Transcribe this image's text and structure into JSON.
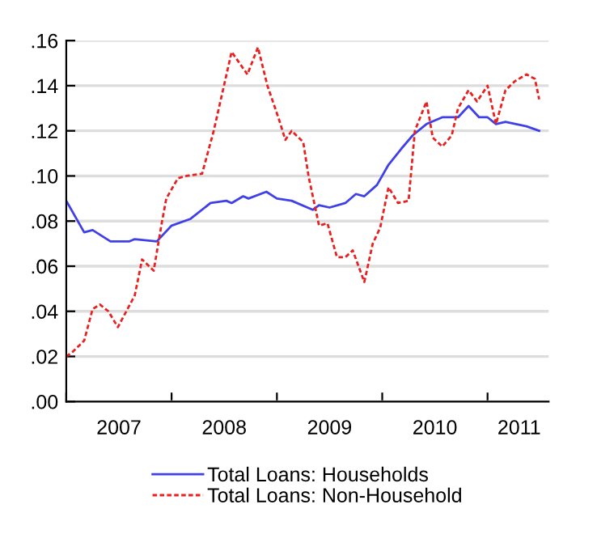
{
  "chart_data": {
    "type": "line",
    "xlim": [
      2007,
      2011.58
    ],
    "xticks": [
      {
        "value": 2007,
        "label": null
      },
      {
        "value": 2008,
        "label": null
      },
      {
        "value": 2009,
        "label": null
      },
      {
        "value": 2010,
        "label": null
      },
      {
        "value": 2011,
        "label": null
      },
      {
        "value": 2007.5,
        "label": "2007"
      },
      {
        "value": 2008.5,
        "label": "2008"
      },
      {
        "value": 2009.5,
        "label": "2009"
      },
      {
        "value": 2010.5,
        "label": "2010"
      },
      {
        "value": 2011.3,
        "label": "2011"
      }
    ],
    "ylim": [
      0,
      0.16
    ],
    "yticks": [
      {
        "value": 0,
        "label": ".00"
      },
      {
        "value": 0.02,
        "label": ".02"
      },
      {
        "value": 0.04,
        "label": ".04"
      },
      {
        "value": 0.06,
        "label": ".06"
      },
      {
        "value": 0.08,
        "label": ".08"
      },
      {
        "value": 0.1,
        "label": ".10"
      },
      {
        "value": 0.12,
        "label": ".12"
      },
      {
        "value": 0.14,
        "label": ".14"
      },
      {
        "value": 0.16,
        "label": ".16"
      }
    ],
    "grid": "y",
    "legend": "bottom",
    "series": [
      {
        "name": "Total Loans: Households",
        "color": "#4040e8",
        "line_style": "solid",
        "x": [
          2007.0,
          2007.17,
          2007.25,
          2007.42,
          2007.6,
          2007.65,
          2007.86,
          2008.0,
          2008.18,
          2008.37,
          2008.52,
          2008.57,
          2008.68,
          2008.73,
          2008.9,
          2009.0,
          2009.14,
          2009.34,
          2009.4,
          2009.5,
          2009.65,
          2009.75,
          2009.83,
          2009.95,
          2010.06,
          2010.18,
          2010.29,
          2010.42,
          2010.57,
          2010.72,
          2010.82,
          2010.92,
          2011.0,
          2011.08,
          2011.17,
          2011.37,
          2011.49
        ],
        "values": [
          0.089,
          0.075,
          0.076,
          0.071,
          0.071,
          0.072,
          0.071,
          0.078,
          0.081,
          0.088,
          0.089,
          0.088,
          0.091,
          0.09,
          0.093,
          0.09,
          0.089,
          0.085,
          0.087,
          0.086,
          0.088,
          0.092,
          0.091,
          0.096,
          0.105,
          0.112,
          0.118,
          0.123,
          0.126,
          0.126,
          0.131,
          0.126,
          0.126,
          0.123,
          0.124,
          0.122,
          0.12
        ]
      },
      {
        "name": "Total Loans: Non-Household",
        "color": "#e82020",
        "line_style": "dashed",
        "x": [
          2007.0,
          2007.06,
          2007.17,
          2007.25,
          2007.32,
          2007.4,
          2007.49,
          2007.57,
          2007.65,
          2007.72,
          2007.83,
          2007.91,
          2007.95,
          2008.06,
          2008.14,
          2008.29,
          2008.4,
          2008.57,
          2008.72,
          2008.82,
          2008.91,
          2009.02,
          2009.08,
          2009.14,
          2009.25,
          2009.3,
          2009.4,
          2009.48,
          2009.57,
          2009.65,
          2009.72,
          2009.83,
          2009.91,
          2009.98,
          2010.06,
          2010.15,
          2010.25,
          2010.31,
          2010.42,
          2010.48,
          2010.57,
          2010.66,
          2010.72,
          2010.82,
          2010.9,
          2011.0,
          2011.08,
          2011.17,
          2011.26,
          2011.37,
          2011.45,
          2011.49
        ],
        "values": [
          0.02,
          0.022,
          0.027,
          0.041,
          0.043,
          0.04,
          0.033,
          0.04,
          0.047,
          0.063,
          0.058,
          0.08,
          0.09,
          0.099,
          0.1,
          0.101,
          0.12,
          0.155,
          0.145,
          0.157,
          0.14,
          0.125,
          0.116,
          0.12,
          0.115,
          0.1,
          0.078,
          0.079,
          0.064,
          0.064,
          0.067,
          0.053,
          0.07,
          0.077,
          0.095,
          0.088,
          0.089,
          0.12,
          0.133,
          0.117,
          0.113,
          0.118,
          0.13,
          0.138,
          0.133,
          0.14,
          0.123,
          0.138,
          0.142,
          0.145,
          0.143,
          0.134
        ]
      }
    ]
  }
}
